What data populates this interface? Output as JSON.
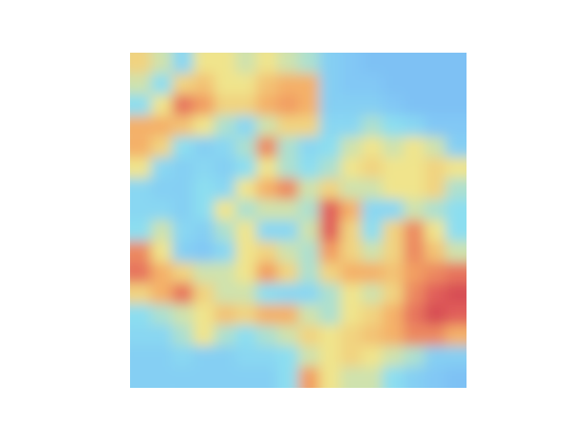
{
  "chart_data": {
    "type": "heatmap",
    "tick_labels": false,
    "zlim": [
      0,
      1
    ],
    "cells": [
      [
        0.6,
        0.5,
        0.35,
        0.55,
        0.55,
        0.5,
        0.55,
        0.5,
        0.45,
        0.3,
        0.25,
        0.2,
        0.2,
        0.2,
        0.2,
        0.2
      ],
      [
        0.5,
        0.4,
        0.6,
        0.65,
        0.55,
        0.55,
        0.65,
        0.7,
        0.7,
        0.3,
        0.25,
        0.25,
        0.2,
        0.2,
        0.2,
        0.2
      ],
      [
        0.4,
        0.55,
        0.85,
        0.75,
        0.6,
        0.6,
        0.7,
        0.75,
        0.7,
        0.3,
        0.3,
        0.3,
        0.25,
        0.2,
        0.2,
        0.2
      ],
      [
        0.7,
        0.7,
        0.65,
        0.55,
        0.45,
        0.35,
        0.5,
        0.6,
        0.6,
        0.35,
        0.35,
        0.45,
        0.4,
        0.35,
        0.25,
        0.25
      ],
      [
        0.7,
        0.6,
        0.4,
        0.3,
        0.35,
        0.45,
        0.8,
        0.45,
        0.35,
        0.4,
        0.5,
        0.55,
        0.5,
        0.55,
        0.5,
        0.3
      ],
      [
        0.55,
        0.35,
        0.3,
        0.35,
        0.3,
        0.4,
        0.55,
        0.45,
        0.4,
        0.45,
        0.55,
        0.6,
        0.55,
        0.55,
        0.6,
        0.55
      ],
      [
        0.35,
        0.3,
        0.3,
        0.4,
        0.35,
        0.55,
        0.7,
        0.8,
        0.5,
        0.6,
        0.5,
        0.5,
        0.55,
        0.55,
        0.6,
        0.45
      ],
      [
        0.35,
        0.35,
        0.3,
        0.4,
        0.55,
        0.45,
        0.5,
        0.5,
        0.45,
        0.9,
        0.7,
        0.35,
        0.35,
        0.5,
        0.45,
        0.4
      ],
      [
        0.4,
        0.5,
        0.35,
        0.3,
        0.45,
        0.55,
        0.35,
        0.35,
        0.5,
        0.9,
        0.6,
        0.4,
        0.6,
        0.8,
        0.55,
        0.4
      ],
      [
        0.8,
        0.55,
        0.3,
        0.25,
        0.35,
        0.55,
        0.6,
        0.5,
        0.45,
        0.75,
        0.6,
        0.5,
        0.6,
        0.8,
        0.65,
        0.5
      ],
      [
        0.85,
        0.7,
        0.6,
        0.5,
        0.5,
        0.55,
        0.75,
        0.6,
        0.45,
        0.6,
        0.7,
        0.7,
        0.65,
        0.75,
        0.8,
        0.85
      ],
      [
        0.6,
        0.7,
        0.85,
        0.6,
        0.5,
        0.5,
        0.4,
        0.35,
        0.35,
        0.45,
        0.55,
        0.5,
        0.6,
        0.8,
        0.9,
        0.95
      ],
      [
        0.4,
        0.45,
        0.5,
        0.55,
        0.65,
        0.6,
        0.7,
        0.7,
        0.5,
        0.45,
        0.55,
        0.6,
        0.7,
        0.85,
        0.95,
        0.9
      ],
      [
        0.35,
        0.35,
        0.45,
        0.55,
        0.45,
        0.4,
        0.45,
        0.5,
        0.6,
        0.55,
        0.6,
        0.65,
        0.7,
        0.8,
        0.8,
        0.7
      ],
      [
        0.3,
        0.3,
        0.35,
        0.3,
        0.3,
        0.35,
        0.35,
        0.4,
        0.5,
        0.55,
        0.6,
        0.55,
        0.5,
        0.45,
        0.3,
        0.3
      ],
      [
        0.3,
        0.3,
        0.3,
        0.3,
        0.3,
        0.3,
        0.3,
        0.4,
        0.75,
        0.55,
        0.5,
        0.5,
        0.4,
        0.3,
        0.25,
        0.2
      ]
    ]
  }
}
